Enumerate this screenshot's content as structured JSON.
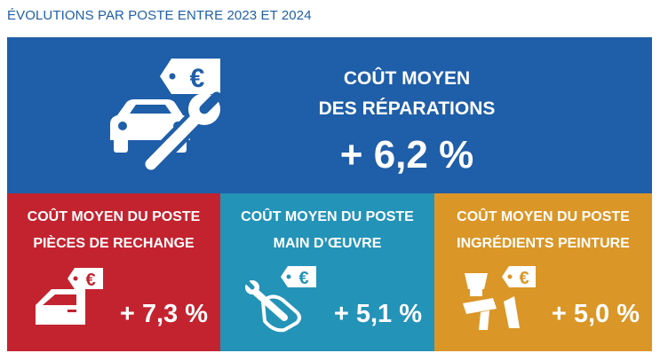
{
  "page_title": "ÉVOLUTIONS PAR POSTE ENTRE 2023 ET 2024",
  "main": {
    "title_line1": "COÛT MOYEN",
    "title_line2": "DES RÉPARATIONS",
    "value": "+ 6,2 %",
    "icon": "car-wrench-euro-tag-icon",
    "color": "#1f5ea8"
  },
  "cards": [
    {
      "title_line1": "COÛT MOYEN DU POSTE",
      "title_line2": "PIÈCES DE RECHANGE",
      "value": "+ 7,3 %",
      "icon": "car-door-euro-tag-icon",
      "color": "#c3232f"
    },
    {
      "title_line1": "COÛT MOYEN DU POSTE",
      "title_line2": "MAIN D’ŒUVRE",
      "value": "+ 5,1 %",
      "icon": "hand-wrench-euro-tag-icon",
      "color": "#2493b8"
    },
    {
      "title_line1": "COÛT MOYEN DU POSTE",
      "title_line2": "INGRÉDIENTS PEINTURE",
      "value": "+ 5,0 %",
      "icon": "spray-gun-euro-tag-icon",
      "color": "#da9627"
    }
  ],
  "euro_symbol": "€"
}
